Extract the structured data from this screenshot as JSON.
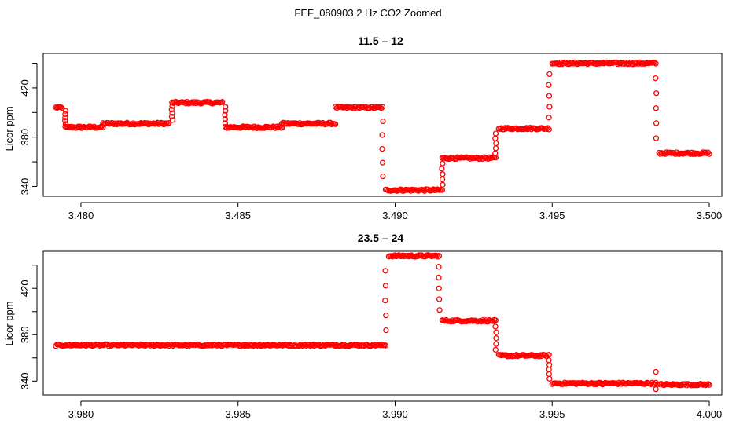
{
  "figure": {
    "title": "FEF_080903  2 Hz CO2 Zoomed",
    "point_color": "#ff0000"
  },
  "chart_data": [
    {
      "type": "scatter",
      "title": "11.5 – 12",
      "xlabel": "",
      "ylabel": "Licor ppm",
      "xlim": [
        3.4788,
        3.5004
      ],
      "ylim": [
        332,
        448
      ],
      "xticks": [
        "3.480",
        "3.485",
        "3.490",
        "3.495",
        "3.500"
      ],
      "xtick_values": [
        3.48,
        3.485,
        3.49,
        3.495,
        3.5
      ],
      "yticks_labeled": [
        "340",
        "380",
        "420"
      ],
      "ytick_values": [
        340,
        360,
        380,
        400,
        420,
        440
      ],
      "marker": "open-circle",
      "segments": [
        {
          "x0": 3.4792,
          "x1": 3.4794,
          "y": 404
        },
        {
          "x0": 3.4795,
          "x1": 3.4807,
          "y": 388
        },
        {
          "x0": 3.4807,
          "x1": 3.4828,
          "y": 391
        },
        {
          "x0": 3.4829,
          "x1": 3.4845,
          "y": 408
        },
        {
          "x0": 3.4846,
          "x1": 3.4864,
          "y": 388
        },
        {
          "x0": 3.4864,
          "x1": 3.4881,
          "y": 391
        },
        {
          "x0": 3.4881,
          "x1": 3.4896,
          "y": 404
        },
        {
          "x0": 3.4897,
          "x1": 3.4915,
          "y": 337
        },
        {
          "x0": 3.4915,
          "x1": 3.4932,
          "y": 363
        },
        {
          "x0": 3.4933,
          "x1": 3.4949,
          "y": 387
        },
        {
          "x0": 3.495,
          "x1": 3.4983,
          "y": 440
        },
        {
          "x0": 3.4984,
          "x1": 3.5,
          "y": 367
        }
      ],
      "transitions": [
        {
          "x": 3.4795,
          "from": 404,
          "to": 388
        },
        {
          "x": 3.4829,
          "from": 391,
          "to": 408
        },
        {
          "x": 3.4846,
          "from": 408,
          "to": 388
        },
        {
          "x": 3.4896,
          "from": 404,
          "to": 337
        },
        {
          "x": 3.4915,
          "from": 337,
          "to": 363
        },
        {
          "x": 3.4932,
          "from": 363,
          "to": 387
        },
        {
          "x": 3.4949,
          "from": 387,
          "to": 440
        },
        {
          "x": 3.4983,
          "from": 440,
          "to": 367
        }
      ]
    },
    {
      "type": "scatter",
      "title": "23.5 – 24",
      "xlabel": "",
      "ylabel": "Licor ppm",
      "xlim": [
        3.9788,
        4.0004
      ],
      "ylim": [
        328,
        452
      ],
      "xticks": [
        "3.980",
        "3.985",
        "3.990",
        "3.995",
        "4.000"
      ],
      "xtick_values": [
        3.98,
        3.985,
        3.99,
        3.995,
        4.0
      ],
      "yticks_labeled": [
        "340",
        "380",
        "420"
      ],
      "ytick_values": [
        340,
        360,
        380,
        400,
        420,
        440
      ],
      "marker": "open-circle",
      "segments": [
        {
          "x0": 3.9792,
          "x1": 3.9897,
          "y": 371
        },
        {
          "x0": 3.9898,
          "x1": 3.9914,
          "y": 448
        },
        {
          "x0": 3.9915,
          "x1": 3.9932,
          "y": 392
        },
        {
          "x0": 3.9933,
          "x1": 3.9949,
          "y": 362
        },
        {
          "x0": 3.995,
          "x1": 3.9983,
          "y": 338
        },
        {
          "x0": 3.9984,
          "x1": 4.0,
          "y": 337
        }
      ],
      "transitions": [
        {
          "x": 3.9897,
          "from": 371,
          "to": 448
        },
        {
          "x": 3.9914,
          "from": 448,
          "to": 392
        },
        {
          "x": 3.9932,
          "from": 392,
          "to": 362
        },
        {
          "x": 3.9949,
          "from": 362,
          "to": 338
        }
      ],
      "outliers": [
        {
          "x": 3.9983,
          "y": 348
        },
        {
          "x": 3.9983,
          "y": 333
        },
        {
          "x": 3.9966,
          "y": 337
        }
      ]
    }
  ]
}
